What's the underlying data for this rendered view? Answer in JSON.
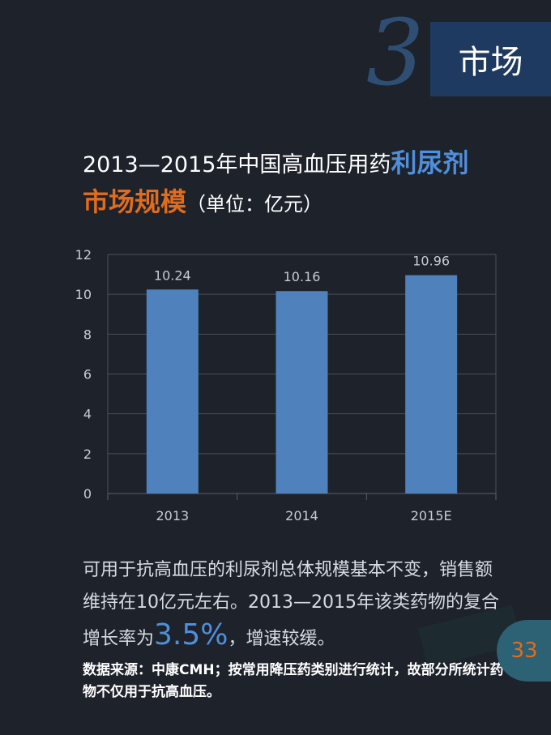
{
  "header": {
    "section_number": "3",
    "section_title": "市场"
  },
  "title": {
    "line1_main": "2013—2015年中国高血压用药",
    "line1_highlight": "利尿剂",
    "line2_highlight": "市场规模",
    "line2_unit": "（单位：亿元）"
  },
  "chart_data": {
    "type": "bar",
    "categories": [
      "2013",
      "2014",
      "2015E"
    ],
    "values": [
      10.24,
      10.16,
      10.96
    ],
    "value_labels": [
      "10.24",
      "10.16",
      "10.96"
    ],
    "ylim": [
      0,
      12
    ],
    "yticks": [
      "0",
      "2",
      "4",
      "6",
      "8",
      "10",
      "12"
    ],
    "grid": true,
    "bar_color": "#4f81bd"
  },
  "body": {
    "text_before": "可用于抗高血压的利尿剂总体规模基本不变，销售额维持在10亿元左右。2013—2015年该类药物的复合增长率为",
    "rate": "3.5%",
    "text_after": "，增速较缓。"
  },
  "source": {
    "text": "数据来源：中康CMH；按常用降压药类别进行统计，故部分所统计药物不仅用于抗高血压。"
  },
  "page": {
    "number": "33"
  },
  "colors": {
    "background": "#1d222b",
    "accent_blue": "#4f8fdc",
    "accent_orange": "#e06c1e"
  }
}
